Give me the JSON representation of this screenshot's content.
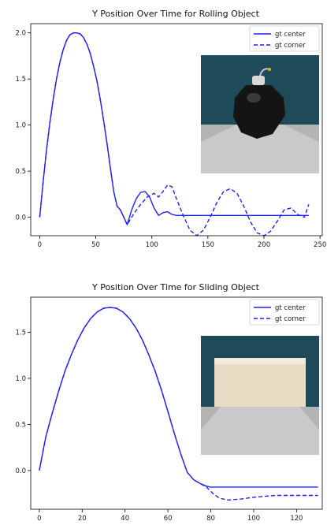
{
  "colors": {
    "line": "#1f1fff",
    "wall_teal": "#1f4a5a",
    "floor_gray": "#c8c8c8",
    "ball_black": "#151515",
    "box_beige": "#e8dfc6"
  },
  "chart_data": [
    {
      "type": "line",
      "title": "Y Position Over Time for Rolling Object",
      "xlabel": "",
      "ylabel": "",
      "xlim": [
        -8,
        252
      ],
      "ylim": [
        -0.2,
        2.1
      ],
      "xticks": [
        0,
        50,
        100,
        150,
        200,
        250
      ],
      "yticks": [
        0.0,
        0.5,
        1.0,
        1.5,
        2.0
      ],
      "xtick_labels": [
        "0",
        "50",
        "100",
        "150",
        "200",
        "250"
      ],
      "ytick_labels": [
        "0.0",
        "0.5",
        "1.0",
        "1.5",
        "2.0"
      ],
      "grid": false,
      "legend": "top-right",
      "inset_image": "black-bomb-in-teal-room",
      "series": [
        {
          "name": "gt center",
          "style": "solid",
          "x": [
            0,
            3,
            6,
            9,
            12,
            15,
            18,
            21,
            24,
            27,
            30,
            33,
            36,
            39,
            42,
            45,
            48,
            51,
            54,
            57,
            60,
            63,
            66,
            69,
            72,
            75,
            78,
            82,
            86,
            90,
            94,
            98,
            102,
            106,
            110,
            114,
            118,
            122,
            130,
            240
          ],
          "y": [
            0.0,
            0.38,
            0.72,
            1.02,
            1.28,
            1.5,
            1.68,
            1.82,
            1.92,
            1.98,
            2.0,
            2.0,
            1.99,
            1.95,
            1.88,
            1.78,
            1.64,
            1.48,
            1.28,
            1.05,
            0.8,
            0.54,
            0.28,
            0.12,
            0.08,
            0.0,
            -0.08,
            0.08,
            0.2,
            0.27,
            0.28,
            0.22,
            0.1,
            0.02,
            0.05,
            0.06,
            0.03,
            0.02,
            0.02,
            0.02
          ]
        },
        {
          "name": "gt corner",
          "style": "dashed",
          "x": [
            0,
            3,
            6,
            9,
            12,
            15,
            18,
            21,
            24,
            27,
            30,
            33,
            36,
            39,
            42,
            45,
            48,
            51,
            54,
            57,
            60,
            63,
            66,
            69,
            72,
            75,
            78,
            84,
            90,
            96,
            102,
            106,
            110,
            114,
            118,
            122,
            128,
            134,
            140,
            146,
            152,
            158,
            164,
            170,
            176,
            182,
            188,
            194,
            200,
            206,
            212,
            218,
            224,
            230,
            236,
            240
          ],
          "y": [
            0.0,
            0.38,
            0.72,
            1.02,
            1.28,
            1.5,
            1.68,
            1.82,
            1.92,
            1.98,
            2.0,
            2.0,
            1.99,
            1.95,
            1.88,
            1.78,
            1.64,
            1.48,
            1.28,
            1.05,
            0.8,
            0.54,
            0.28,
            0.12,
            0.08,
            0.0,
            -0.08,
            0.04,
            0.14,
            0.22,
            0.26,
            0.22,
            0.28,
            0.35,
            0.33,
            0.2,
            0.02,
            -0.14,
            -0.2,
            -0.14,
            0.0,
            0.16,
            0.28,
            0.31,
            0.26,
            0.12,
            -0.05,
            -0.17,
            -0.2,
            -0.15,
            -0.04,
            0.08,
            0.1,
            0.03,
            0.0,
            0.14
          ]
        }
      ]
    },
    {
      "type": "line",
      "title": "Y Position Over Time for Sliding Object",
      "xlabel": "",
      "ylabel": "",
      "xlim": [
        -4,
        132
      ],
      "ylim": [
        -0.42,
        1.88
      ],
      "xticks": [
        0,
        20,
        40,
        60,
        80,
        100,
        120
      ],
      "yticks": [
        0.0,
        0.5,
        1.0,
        1.5
      ],
      "xtick_labels": [
        "0",
        "20",
        "40",
        "60",
        "80",
        "100",
        "120"
      ],
      "ytick_labels": [
        "0.0",
        "0.5",
        "1.0",
        "1.5"
      ],
      "grid": false,
      "legend": "top-right",
      "inset_image": "beige-box-in-teal-room",
      "series": [
        {
          "name": "gt center",
          "style": "solid",
          "x": [
            0,
            3,
            6,
            9,
            12,
            15,
            18,
            21,
            24,
            27,
            30,
            33,
            36,
            39,
            42,
            45,
            48,
            51,
            54,
            57,
            60,
            63,
            66,
            69,
            72,
            75,
            78,
            80,
            130
          ],
          "y": [
            0.0,
            0.36,
            0.62,
            0.86,
            1.08,
            1.26,
            1.42,
            1.55,
            1.65,
            1.72,
            1.76,
            1.77,
            1.76,
            1.72,
            1.65,
            1.55,
            1.42,
            1.26,
            1.08,
            0.87,
            0.64,
            0.4,
            0.18,
            -0.02,
            -0.1,
            -0.14,
            -0.17,
            -0.18,
            -0.18
          ]
        },
        {
          "name": "gt corner",
          "style": "dashed",
          "x": [
            0,
            3,
            6,
            9,
            12,
            15,
            18,
            21,
            24,
            27,
            30,
            33,
            36,
            39,
            42,
            45,
            48,
            51,
            54,
            57,
            60,
            63,
            66,
            69,
            72,
            75,
            78,
            81,
            84,
            88,
            94,
            100,
            110,
            120,
            130
          ],
          "y": [
            0.0,
            0.36,
            0.62,
            0.86,
            1.08,
            1.26,
            1.42,
            1.55,
            1.65,
            1.72,
            1.76,
            1.77,
            1.76,
            1.72,
            1.65,
            1.55,
            1.42,
            1.26,
            1.08,
            0.87,
            0.64,
            0.4,
            0.18,
            -0.02,
            -0.1,
            -0.14,
            -0.18,
            -0.25,
            -0.3,
            -0.32,
            -0.31,
            -0.29,
            -0.27,
            -0.27,
            -0.27
          ]
        }
      ]
    }
  ]
}
